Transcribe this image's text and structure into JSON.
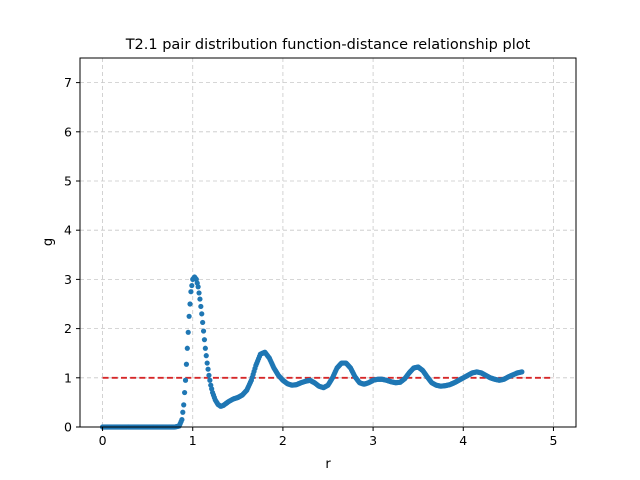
{
  "chart_data": {
    "type": "scatter",
    "title": "T2.1 pair distribution function-distance relationship plot",
    "xlabel": "r",
    "ylabel": "g",
    "xlim": [
      -0.25,
      5.25
    ],
    "ylim": [
      0,
      7.5
    ],
    "x_ticks": [
      "0",
      "1",
      "2",
      "3",
      "4",
      "5"
    ],
    "y_ticks": [
      "0",
      "1",
      "2",
      "3",
      "4",
      "5",
      "6",
      "7"
    ],
    "grid": true,
    "reference_line": {
      "y": 1.0,
      "x_range": [
        0,
        5
      ],
      "style": "dashed",
      "color": "#d62728"
    },
    "series": [
      {
        "color": "#1f77b4",
        "marker": "circle",
        "x": [
          0.0,
          0.1,
          0.2,
          0.3,
          0.4,
          0.5,
          0.6,
          0.7,
          0.8,
          0.85,
          0.88,
          0.9,
          0.92,
          0.94,
          0.96,
          0.98,
          1.0,
          1.02,
          1.04,
          1.06,
          1.08,
          1.1,
          1.12,
          1.14,
          1.16,
          1.18,
          1.2,
          1.22,
          1.25,
          1.28,
          1.31,
          1.34,
          1.37,
          1.4,
          1.45,
          1.5,
          1.55,
          1.6,
          1.65,
          1.7,
          1.75,
          1.8,
          1.85,
          1.9,
          1.95,
          2.0,
          2.05,
          2.1,
          2.15,
          2.2,
          2.25,
          2.3,
          2.35,
          2.4,
          2.45,
          2.5,
          2.55,
          2.6,
          2.65,
          2.7,
          2.75,
          2.8,
          2.85,
          2.9,
          2.95,
          3.0,
          3.05,
          3.1,
          3.15,
          3.2,
          3.25,
          3.3,
          3.35,
          3.4,
          3.45,
          3.5,
          3.55,
          3.6,
          3.65,
          3.7,
          3.75,
          3.8,
          3.85,
          3.9,
          3.95,
          4.0,
          4.05,
          4.1,
          4.15,
          4.2,
          4.25,
          4.3,
          4.35,
          4.4,
          4.45,
          4.5,
          4.55,
          4.6,
          4.65
        ],
        "y": [
          0,
          0,
          0,
          0,
          0,
          0,
          0,
          0,
          0,
          0.02,
          0.15,
          0.45,
          0.95,
          1.6,
          2.25,
          2.75,
          3.0,
          3.05,
          3.0,
          2.85,
          2.6,
          2.3,
          1.95,
          1.6,
          1.3,
          1.05,
          0.85,
          0.7,
          0.55,
          0.46,
          0.42,
          0.44,
          0.48,
          0.52,
          0.57,
          0.6,
          0.65,
          0.75,
          0.95,
          1.25,
          1.48,
          1.52,
          1.4,
          1.2,
          1.05,
          0.95,
          0.88,
          0.85,
          0.86,
          0.9,
          0.93,
          0.95,
          0.9,
          0.83,
          0.8,
          0.85,
          1.0,
          1.2,
          1.3,
          1.3,
          1.2,
          1.02,
          0.9,
          0.87,
          0.9,
          0.95,
          0.97,
          0.97,
          0.95,
          0.92,
          0.9,
          0.91,
          0.98,
          1.1,
          1.2,
          1.22,
          1.15,
          1.02,
          0.9,
          0.85,
          0.83,
          0.84,
          0.86,
          0.9,
          0.95,
          1.0,
          1.05,
          1.1,
          1.12,
          1.1,
          1.05,
          1.0,
          0.97,
          0.95,
          0.97,
          1.02,
          1.06,
          1.1,
          1.12
        ]
      }
    ]
  }
}
